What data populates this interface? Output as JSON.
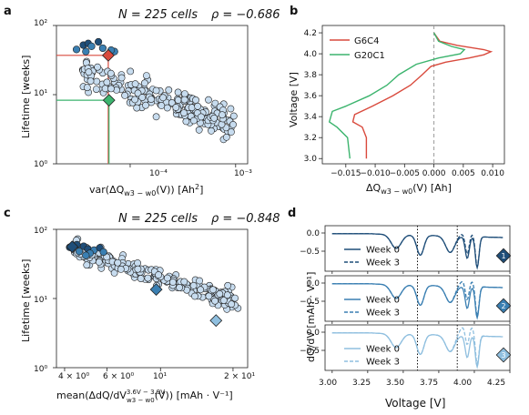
{
  "panels": {
    "a": {
      "letter": "a",
      "title_n": "N = 225 cells",
      "title_rho": "ρ = −0.686",
      "ylabel": "Lifetime [weeks]",
      "xlabel": "var(ΔQw3 − w0(V)) [Ah²]",
      "xlabel_main": "var(ΔQ",
      "xlabel_sub": "w3 − w0",
      "xlabel_end": "(V)) [Ah",
      "xlabel_sup": "2",
      "xlabel_close": "]",
      "yticks": [
        "10⁰",
        "10¹",
        "10²"
      ],
      "xticks": [
        "10⁻⁴",
        "10⁻³"
      ]
    },
    "b": {
      "letter": "b",
      "ylabel": "Voltage [V]",
      "xlabel_main": "ΔQ",
      "xlabel_sub": "w3 − w0",
      "xlabel_end": "(V) [Ah]",
      "yticks": [
        "3.0",
        "3.2",
        "3.4",
        "3.6",
        "3.8",
        "4.0",
        "4.2"
      ],
      "xticks": [
        "−0.015",
        "−0.010",
        "−0.005",
        "0.000",
        "0.005",
        "0.010"
      ],
      "legend": [
        "G6C4",
        "G20C1"
      ]
    },
    "c": {
      "letter": "c",
      "title_n": "N = 225 cells",
      "title_rho": "ρ = −0.848",
      "ylabel": "Lifetime [weeks]",
      "xlabel_main": "mean(ΔdQ/dV",
      "xlabel_sup": "3.6V − 3.9V",
      "xlabel_sub": "w3 − w0",
      "xlabel_end": "(V)) [mAh · V⁻¹]",
      "yticks": [
        "10⁰",
        "10¹",
        "10²"
      ],
      "xticks": [
        "4 × 10⁰",
        "6 × 10⁰",
        "10¹",
        "2 × 10¹"
      ]
    },
    "d": {
      "letter": "d",
      "ylabel": "dQ/dV [mAh · V⁻¹]",
      "xlabel": "Voltage [V]",
      "yticks": [
        "0.0",
        "−0.5"
      ],
      "xticks": [
        "3.00",
        "3.25",
        "3.50",
        "3.75",
        "4.00",
        "4.25"
      ],
      "legend_week0": "Week 0",
      "legend_week3": "Week 3",
      "badges": [
        "1",
        "2",
        "3"
      ]
    }
  },
  "colors": {
    "red": "#d94a3d",
    "green": "#3cb46e",
    "dark_blue": "#1f4e79",
    "mid_blue": "#3a7fb2",
    "light_blue": "#8fbfdf",
    "point_fill": "#c7dcef",
    "grey": "#9a9a9a"
  },
  "chart_data": [
    {
      "panel": "a",
      "type": "scatter",
      "title": "N = 225 cells ρ = −0.686",
      "xlabel": "var(ΔQw3−w0(V)) [Ah²]",
      "ylabel": "Lifetime [weeks]",
      "xscale": "log",
      "yscale": "log",
      "xlim": [
        2e-05,
        0.0013
      ],
      "ylim": [
        1,
        100
      ],
      "highlight": [
        {
          "name": "G6C4",
          "x": 6.2e-05,
          "y": 37,
          "color": "#d94a3d"
        },
        {
          "name": "G20C1",
          "x": 6.3e-05,
          "y": 8.3,
          "color": "#3cb46e"
        }
      ]
    },
    {
      "panel": "b",
      "type": "line",
      "xlabel": "ΔQw3−w0(V) [Ah]",
      "ylabel": "Voltage [V]",
      "xlim": [
        -0.019,
        0.012
      ],
      "ylim": [
        2.95,
        4.27
      ],
      "series": [
        {
          "name": "G6C4",
          "color": "#d94a3d",
          "points": [
            [
              -0.0115,
              3.0
            ],
            [
              -0.0115,
              3.2
            ],
            [
              -0.0122,
              3.3
            ],
            [
              -0.0138,
              3.35
            ],
            [
              -0.0135,
              3.42
            ],
            [
              -0.0105,
              3.5
            ],
            [
              -0.007,
              3.6
            ],
            [
              -0.004,
              3.7
            ],
            [
              -0.002,
              3.8
            ],
            [
              -0.0005,
              3.88
            ],
            [
              0.002,
              3.92
            ],
            [
              0.006,
              3.96
            ],
            [
              0.0085,
              3.99
            ],
            [
              0.0097,
              4.02
            ],
            [
              0.0085,
              4.04
            ],
            [
              0.004,
              4.08
            ],
            [
              0.001,
              4.12
            ],
            [
              0.0,
              4.2
            ]
          ]
        },
        {
          "name": "G20C1",
          "color": "#3cb46e",
          "points": [
            [
              -0.0143,
              3.0
            ],
            [
              -0.0147,
              3.2
            ],
            [
              -0.0165,
              3.3
            ],
            [
              -0.0178,
              3.35
            ],
            [
              -0.0173,
              3.45
            ],
            [
              -0.015,
              3.5
            ],
            [
              -0.011,
              3.6
            ],
            [
              -0.008,
              3.7
            ],
            [
              -0.006,
              3.8
            ],
            [
              -0.003,
              3.9
            ],
            [
              0.0008,
              3.96
            ],
            [
              0.0045,
              4.0
            ],
            [
              0.0052,
              4.04
            ],
            [
              0.003,
              4.07
            ],
            [
              0.0008,
              4.12
            ],
            [
              0.0,
              4.2
            ]
          ]
        }
      ]
    },
    {
      "panel": "c",
      "type": "scatter",
      "title": "N = 225 cells ρ = −0.848",
      "xlabel": "mean(ΔdQ/dV3.6V−3.9Vw3−w0(V)) [mAh·V⁻¹]",
      "ylabel": "Lifetime [weeks]",
      "xscale": "log",
      "yscale": "log",
      "xlim": [
        3.7,
        23
      ],
      "ylim": [
        1,
        100
      ],
      "highlight": [
        {
          "badge": "1",
          "x": 4.3,
          "y": 56,
          "color": "#1f4e79"
        },
        {
          "badge": "2",
          "x": 9.6,
          "y": 13.5,
          "color": "#3a7fb2"
        },
        {
          "badge": "3",
          "x": 17,
          "y": 4.8,
          "color": "#8fbfdf"
        }
      ]
    },
    {
      "panel": "d",
      "type": "line",
      "xlabel": "Voltage [V]",
      "ylabel": "dQ/dV [mAh·V⁻¹]",
      "xlim": [
        2.95,
        4.25
      ],
      "vlines": [
        3.6,
        3.88
      ],
      "subplots": [
        {
          "badge": "1",
          "color": "#1f4e79",
          "series": [
            "Week 0",
            "Week 3"
          ]
        },
        {
          "badge": "2",
          "color": "#3a7fb2",
          "series": [
            "Week 0",
            "Week 3"
          ]
        },
        {
          "badge": "3",
          "color": "#8fbfdf",
          "series": [
            "Week 0",
            "Week 3"
          ]
        }
      ]
    }
  ]
}
